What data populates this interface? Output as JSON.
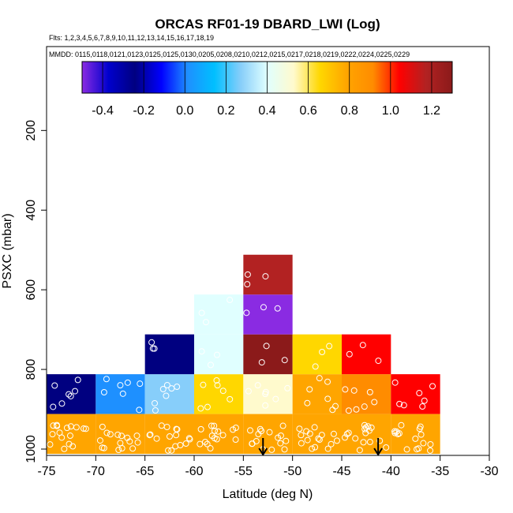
{
  "chart_data": {
    "type": "heatmap",
    "title": "ORCAS RF01-19 DBARD_LWI (Log)",
    "flights_label": "Flts: 1,2,3,4,5,6,7,8,9,10,11,12,13,14,15,16,17,18,19",
    "dates_label": "MMDD: 0115,0118,0121,0123,0125,0125,0130,0205,0208,0210,0212,0215,0217,0218,0219,0222,0224,0225,0229",
    "xlabel": "Latitude (deg N)",
    "ylabel": "PSXC (mbar)",
    "xlim": [
      -75,
      -30
    ],
    "ylim": [
      1000,
      0
    ],
    "x_ticks": [
      -75,
      -70,
      -65,
      -60,
      -55,
      -50,
      -45,
      -40,
      -35,
      -30
    ],
    "y_ticks": [
      200,
      400,
      600,
      800,
      1000
    ],
    "colorbar": {
      "range": [
        -0.5,
        1.3
      ],
      "ticks": [
        -0.4,
        -0.2,
        0.0,
        0.2,
        0.4,
        0.6,
        0.8,
        1.0,
        1.2
      ],
      "tick_labels": [
        "-0.4",
        "-0.2",
        "0.0",
        "0.2",
        "0.4",
        "0.6",
        "0.8",
        "1.0",
        "1.2"
      ],
      "colors": [
        "#8a2be2",
        "#0000cd",
        "#000080",
        "#0000ff",
        "#1e90ff",
        "#00bfff",
        "#87cefa",
        "#e0ffff",
        "#fffacd",
        "#ffd700",
        "#ffa500",
        "#ff8c00",
        "#ff0000",
        "#b22222",
        "#8b1a1a"
      ]
    },
    "cells": [
      {
        "lat": [
          -75,
          -70
        ],
        "p": [
          812,
          912
        ],
        "value": -0.25
      },
      {
        "lat": [
          -70,
          -65
        ],
        "p": [
          812,
          912
        ],
        "value": 0.05
      },
      {
        "lat": [
          -65,
          -60
        ],
        "p": [
          812,
          912
        ],
        "value": 0.25
      },
      {
        "lat": [
          -60,
          -55
        ],
        "p": [
          812,
          912
        ],
        "value": 0.62
      },
      {
        "lat": [
          -55,
          -50
        ],
        "p": [
          812,
          912
        ],
        "value": 0.5
      },
      {
        "lat": [
          -50,
          -45
        ],
        "p": [
          812,
          912
        ],
        "value": 0.7
      },
      {
        "lat": [
          -45,
          -40
        ],
        "p": [
          812,
          912
        ],
        "value": 0.88
      },
      {
        "lat": [
          -40,
          -35
        ],
        "p": [
          812,
          912
        ],
        "value": 0.97
      },
      {
        "lat": [
          -75,
          -70
        ],
        "p": [
          912,
          1012
        ],
        "value": 0.7
      },
      {
        "lat": [
          -70,
          -65
        ],
        "p": [
          912,
          1012
        ],
        "value": 0.8
      },
      {
        "lat": [
          -65,
          -60
        ],
        "p": [
          912,
          1012
        ],
        "value": 0.72
      },
      {
        "lat": [
          -60,
          -55
        ],
        "p": [
          912,
          1012
        ],
        "value": 0.72
      },
      {
        "lat": [
          -55,
          -50
        ],
        "p": [
          912,
          1012
        ],
        "value": 0.75
      },
      {
        "lat": [
          -50,
          -45
        ],
        "p": [
          912,
          1012
        ],
        "value": 0.72
      },
      {
        "lat": [
          -45,
          -40
        ],
        "p": [
          912,
          1012
        ],
        "value": 0.75
      },
      {
        "lat": [
          -40,
          -35
        ],
        "p": [
          912,
          1012
        ],
        "value": 0.72
      },
      {
        "lat": [
          -65,
          -60
        ],
        "p": [
          712,
          812
        ],
        "value": -0.25
      },
      {
        "lat": [
          -60,
          -55
        ],
        "p": [
          712,
          812
        ],
        "value": 0.35
      },
      {
        "lat": [
          -55,
          -50
        ],
        "p": [
          712,
          812
        ],
        "value": 1.2
      },
      {
        "lat": [
          -50,
          -45
        ],
        "p": [
          712,
          812
        ],
        "value": 0.6
      },
      {
        "lat": [
          -45,
          -40
        ],
        "p": [
          712,
          812
        ],
        "value": 1.05
      },
      {
        "lat": [
          -60,
          -55
        ],
        "p": [
          612,
          712
        ],
        "value": 0.35
      },
      {
        "lat": [
          -55,
          -50
        ],
        "p": [
          612,
          712
        ],
        "value": -0.45
      },
      {
        "lat": [
          -55,
          -50
        ],
        "p": [
          512,
          612
        ],
        "value": 1.15
      }
    ],
    "markers": [
      {
        "lat": -53,
        "label": "down-arrow"
      },
      {
        "lat": -41.3,
        "label": "down-arrow"
      }
    ]
  }
}
